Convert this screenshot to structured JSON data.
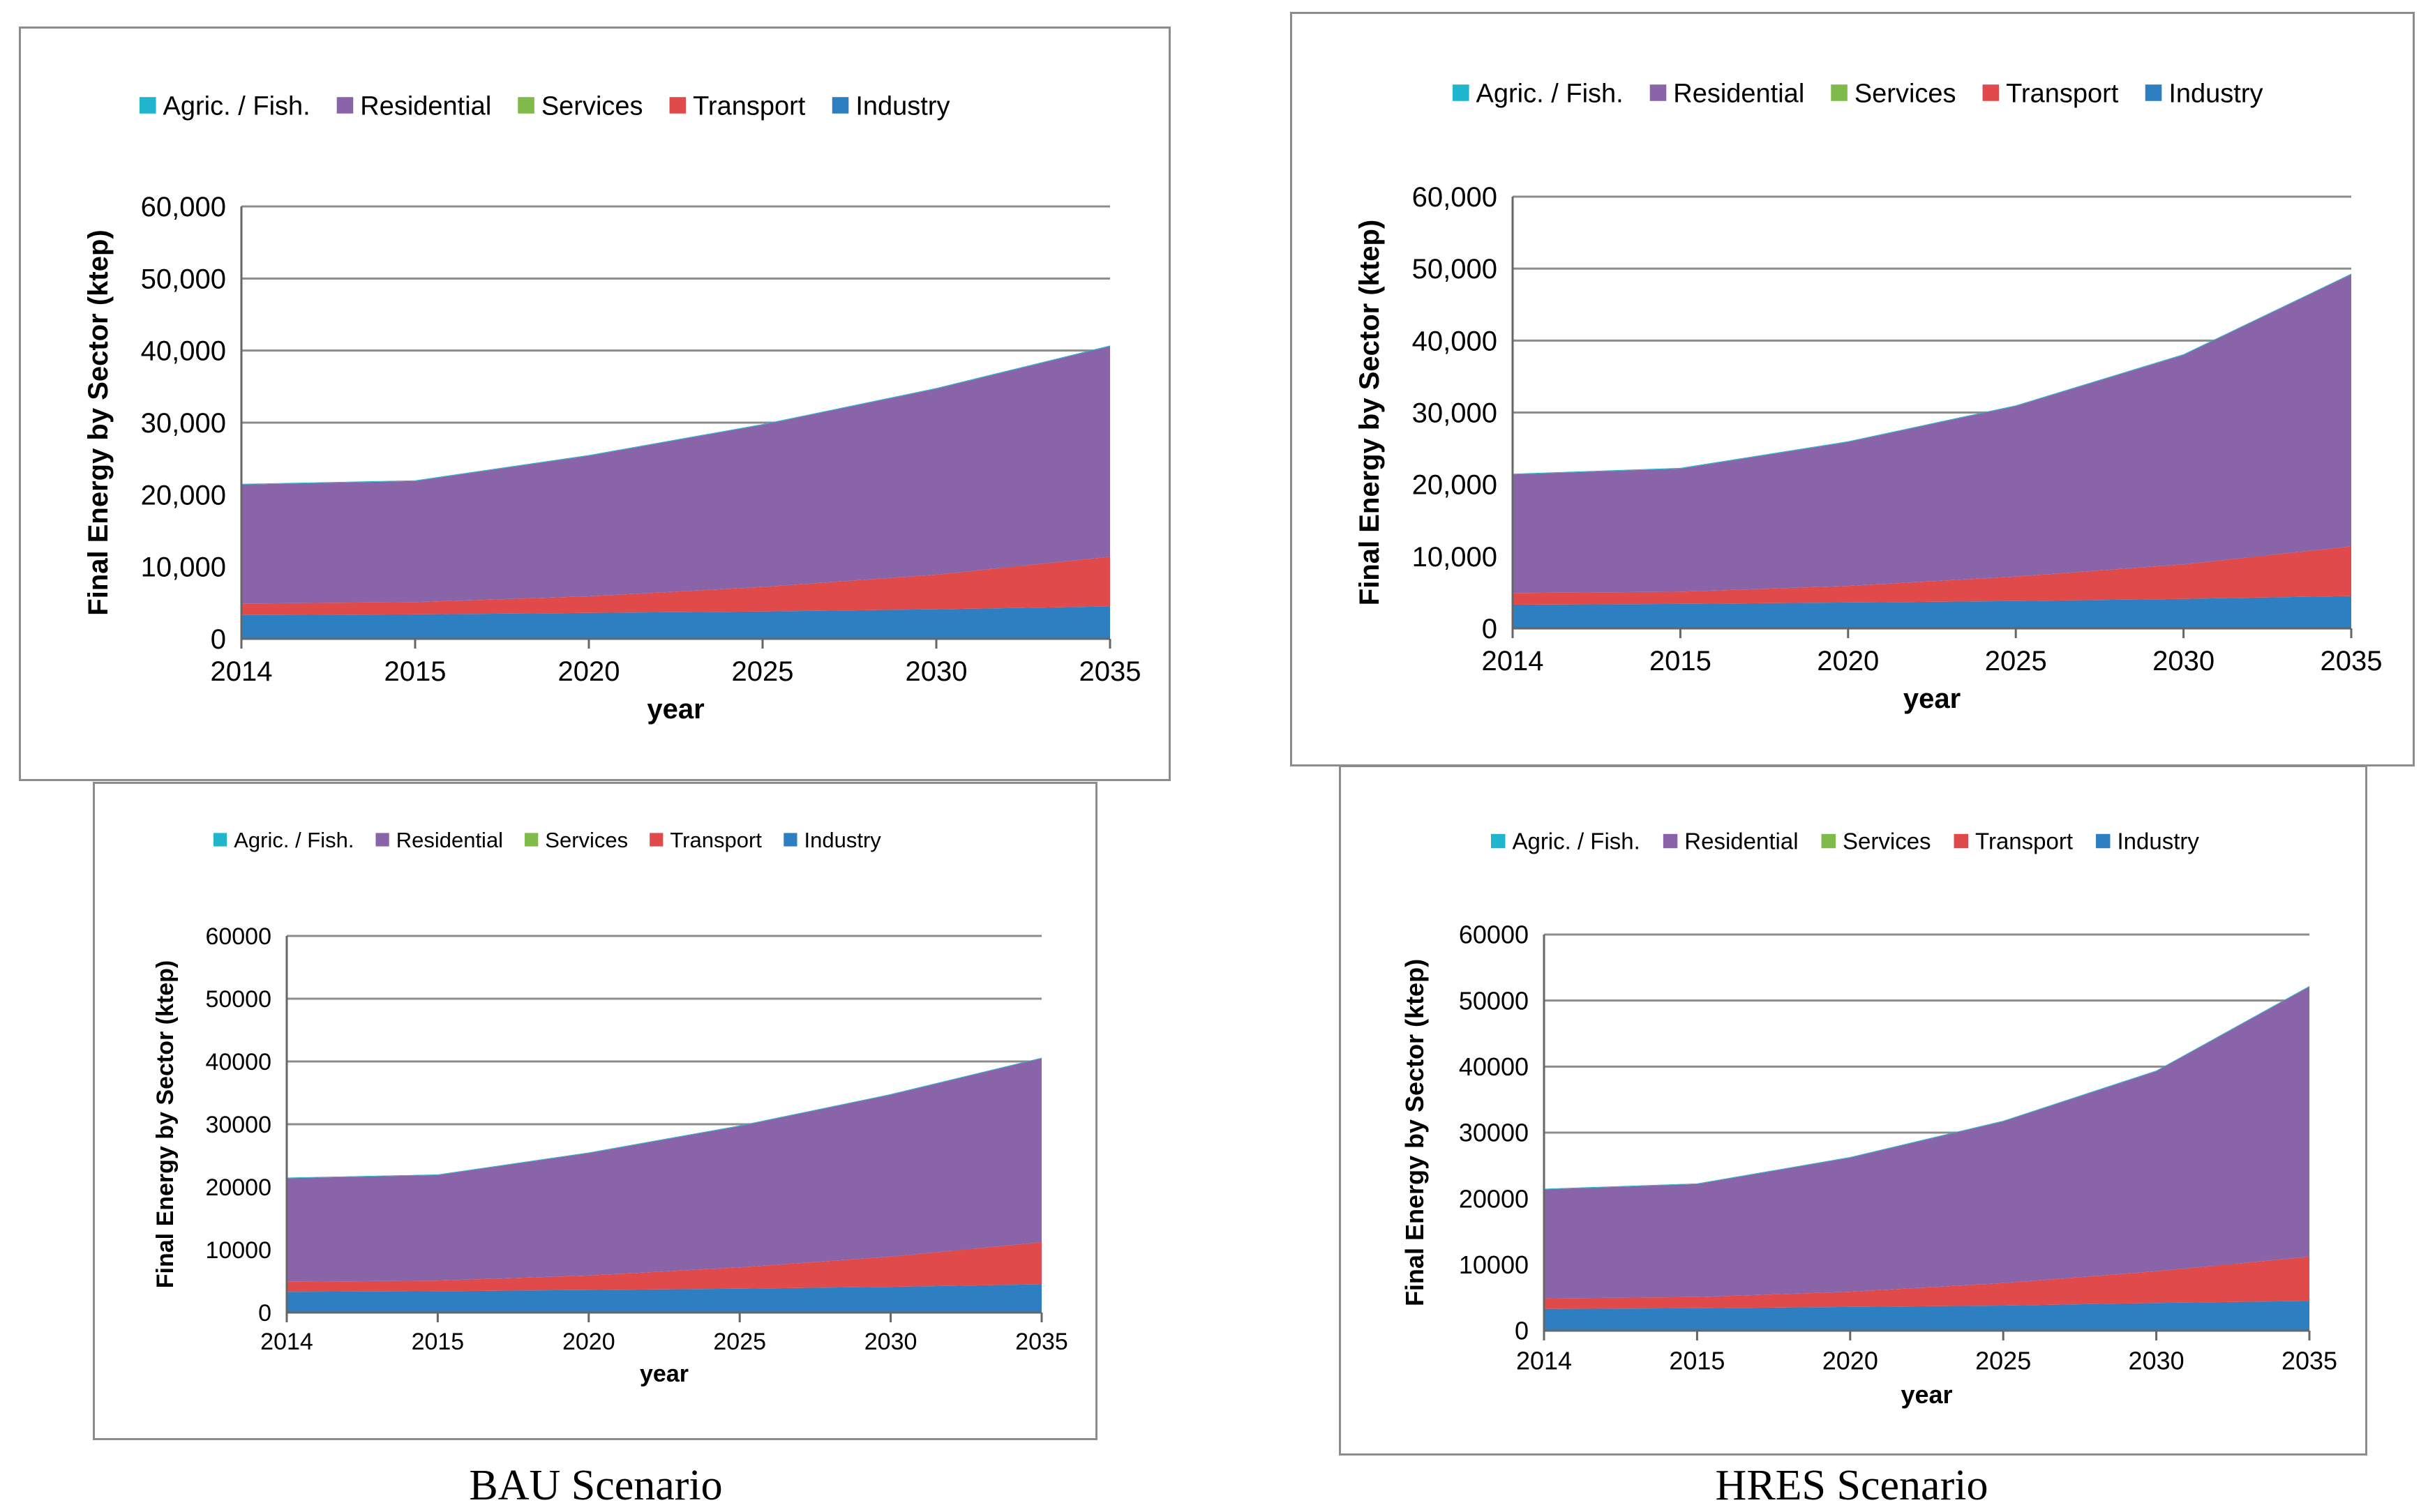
{
  "captions": {
    "left": "BAU Scenario",
    "right": "HRES Scenario"
  },
  "colors": {
    "agric_fish": "#1fb5cc",
    "residential": "#8a64a8",
    "services": "#7fba4a",
    "transport": "#e04a4a",
    "industry": "#2e7fc2",
    "grid": "#8c8c8c",
    "axis": "#666666"
  },
  "chart_data": [
    {
      "id": "bau-top",
      "type": "area",
      "stacked": true,
      "title": "",
      "xlabel": "year",
      "ylabel": "Final Energy by Sector (ktep)",
      "categories": [
        "2014",
        "2015",
        "2020",
        "2025",
        "2030",
        "2035"
      ],
      "ylim": [
        0,
        60000
      ],
      "yticks": [
        "0",
        "10,000",
        "20,000",
        "30,000",
        "40,000",
        "50,000",
        "60,000"
      ],
      "legend": [
        "Agric. / Fish.",
        "Residential",
        "Services",
        "Transport",
        "Industry"
      ],
      "legend_position": "top",
      "series": [
        {
          "name": "Industry",
          "key": "industry",
          "values": [
            3300,
            3400,
            3600,
            3800,
            4100,
            4500
          ]
        },
        {
          "name": "Transport",
          "key": "transport",
          "values": [
            1600,
            1700,
            2300,
            3400,
            4800,
            6900
          ]
        },
        {
          "name": "Services",
          "key": "services",
          "values": [
            0,
            0,
            0,
            0,
            0,
            0
          ]
        },
        {
          "name": "Residential",
          "key": "residential",
          "values": [
            16500,
            16800,
            19500,
            22500,
            25800,
            29200
          ]
        },
        {
          "name": "Agric. / Fish.",
          "key": "agric_fish",
          "values": [
            100,
            100,
            100,
            100,
            100,
            100
          ]
        }
      ]
    },
    {
      "id": "hres-top",
      "type": "area",
      "stacked": true,
      "title": "",
      "xlabel": "year",
      "ylabel": "Final Energy by Sector (ktep)",
      "categories": [
        "2014",
        "2015",
        "2020",
        "2025",
        "2030",
        "2035"
      ],
      "ylim": [
        0,
        60000
      ],
      "yticks": [
        "0",
        "10,000",
        "20,000",
        "30,000",
        "40,000",
        "50,000",
        "60,000"
      ],
      "legend": [
        "Agric. / Fish.",
        "Residential",
        "Services",
        "Transport",
        "Industry"
      ],
      "legend_position": "top",
      "series": [
        {
          "name": "Industry",
          "key": "industry",
          "values": [
            3300,
            3400,
            3600,
            3800,
            4100,
            4500
          ]
        },
        {
          "name": "Transport",
          "key": "transport",
          "values": [
            1600,
            1700,
            2300,
            3400,
            4800,
            6900
          ]
        },
        {
          "name": "Services",
          "key": "services",
          "values": [
            0,
            0,
            0,
            0,
            0,
            0
          ]
        },
        {
          "name": "Residential",
          "key": "residential",
          "values": [
            16500,
            17100,
            20000,
            23700,
            29100,
            37800
          ]
        },
        {
          "name": "Agric. / Fish.",
          "key": "agric_fish",
          "values": [
            100,
            100,
            100,
            100,
            100,
            100
          ]
        }
      ]
    },
    {
      "id": "bau-bottom",
      "type": "area",
      "stacked": true,
      "title": "",
      "xlabel": "year",
      "ylabel": "Final Energy by Sector (ktep)",
      "categories": [
        "2014",
        "2015",
        "2020",
        "2025",
        "2030",
        "2035"
      ],
      "ylim": [
        0,
        60000
      ],
      "yticks": [
        "0",
        "10000",
        "20000",
        "30000",
        "40000",
        "50000",
        "60000"
      ],
      "legend": [
        "Agric. / Fish.",
        "Residential",
        "Services",
        "Transport",
        "Industry"
      ],
      "legend_position": "top",
      "series": [
        {
          "name": "Industry",
          "key": "industry",
          "values": [
            3300,
            3400,
            3600,
            3800,
            4100,
            4500
          ]
        },
        {
          "name": "Transport",
          "key": "transport",
          "values": [
            1600,
            1700,
            2300,
            3400,
            4800,
            6700
          ]
        },
        {
          "name": "Services",
          "key": "services",
          "values": [
            0,
            0,
            0,
            0,
            0,
            0
          ]
        },
        {
          "name": "Residential",
          "key": "residential",
          "values": [
            16500,
            16800,
            19500,
            22500,
            25800,
            29300
          ]
        },
        {
          "name": "Agric. / Fish.",
          "key": "agric_fish",
          "values": [
            100,
            100,
            100,
            100,
            100,
            100
          ]
        }
      ]
    },
    {
      "id": "hres-bottom",
      "type": "area",
      "stacked": true,
      "title": "",
      "xlabel": "year",
      "ylabel": "Final Energy by Sector (ktep)",
      "categories": [
        "2014",
        "2015",
        "2020",
        "2025",
        "2030",
        "2035"
      ],
      "ylim": [
        0,
        60000
      ],
      "yticks": [
        "0",
        "10000",
        "20000",
        "30000",
        "40000",
        "50000",
        "60000"
      ],
      "legend": [
        "Agric. / Fish.",
        "Residential",
        "Services",
        "Transport",
        "Industry"
      ],
      "legend_position": "top",
      "series": [
        {
          "name": "Industry",
          "key": "industry",
          "values": [
            3300,
            3400,
            3600,
            3800,
            4200,
            4500
          ]
        },
        {
          "name": "Transport",
          "key": "transport",
          "values": [
            1600,
            1700,
            2300,
            3400,
            4800,
            6700
          ]
        },
        {
          "name": "Services",
          "key": "services",
          "values": [
            0,
            0,
            0,
            0,
            0,
            0
          ]
        },
        {
          "name": "Residential",
          "key": "residential",
          "values": [
            16500,
            17100,
            20300,
            24500,
            30300,
            40900
          ]
        },
        {
          "name": "Agric. / Fish.",
          "key": "agric_fish",
          "values": [
            100,
            100,
            100,
            100,
            100,
            100
          ]
        }
      ]
    }
  ]
}
